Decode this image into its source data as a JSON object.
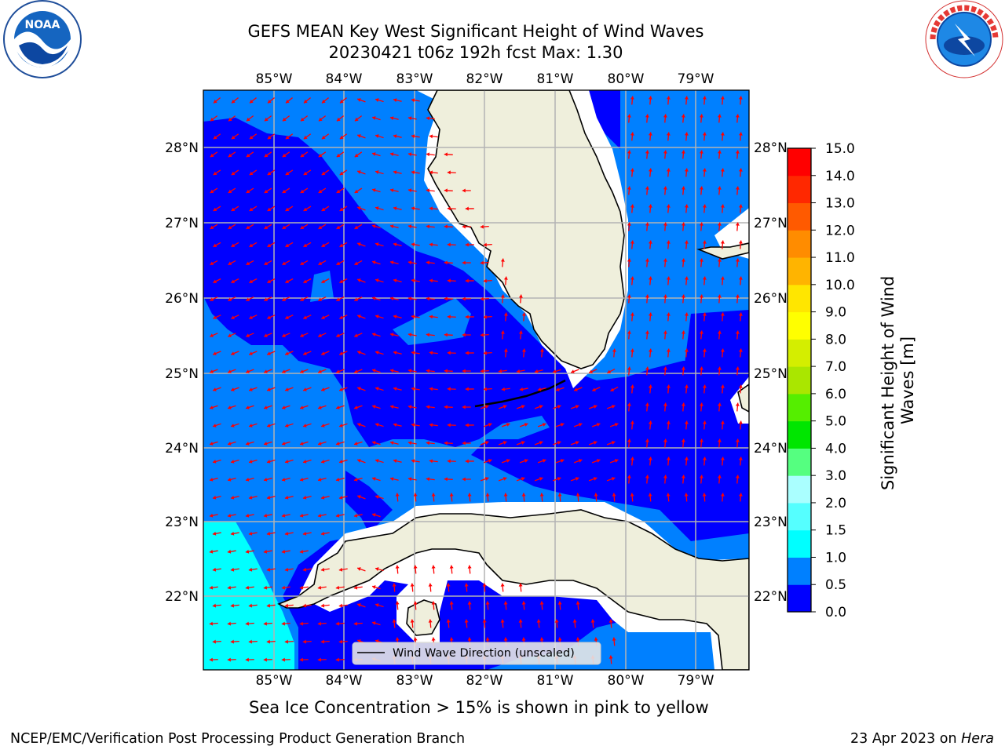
{
  "header": {
    "title": "GEFS MEAN Key West Significant Height of Wind Waves",
    "subtitle": "20230421 t06z 192h fcst   Max: 1.30"
  },
  "map": {
    "lon_labels": [
      "85°W",
      "84°W",
      "83°W",
      "82°W",
      "81°W",
      "80°W",
      "79°W"
    ],
    "lat_labels": [
      "28°N",
      "27°N",
      "26°N",
      "25°N",
      "24°N",
      "23°N",
      "22°N"
    ],
    "legend_label": "Wind Wave Direction (unscaled)",
    "colors": {
      "land": "#efefdc",
      "wave_0_0_5": "#0000ff",
      "wave_0_5_1_0": "#0080ff",
      "wave_1_0_1_5": "#00ffff",
      "arrow": "#ff0000",
      "grid": "#b3b3b3"
    }
  },
  "colorbar": {
    "label": "Significant Height of Wind Waves [m]",
    "ticks": [
      "0.0",
      "0.5",
      "1.0",
      "1.5",
      "2.0",
      "3.0",
      "4.0",
      "5.0",
      "6.0",
      "7.0",
      "8.0",
      "9.0",
      "10.0",
      "11.0",
      "12.0",
      "13.0",
      "14.0",
      "15.0"
    ],
    "colors": [
      "#0000ff",
      "#0080ff",
      "#00ffff",
      "#55ffff",
      "#aaffff",
      "#55ff80",
      "#00e600",
      "#55ee00",
      "#aae600",
      "#d4ee00",
      "#ffff00",
      "#ffe600",
      "#ffb400",
      "#ff8c00",
      "#ff5a00",
      "#ff2800",
      "#ff0000"
    ]
  },
  "notes": {
    "sea_ice": "Sea Ice Concentration > 15% is shown in pink to yellow"
  },
  "footer": {
    "left": "NCEP/EMC/Verification Post Processing Product Generation Branch",
    "date": "23 Apr 2023 on ",
    "host": "Hera"
  },
  "logos": {
    "left_icon": "noaa-logo-icon",
    "right_icon": "nws-logo-icon"
  }
}
